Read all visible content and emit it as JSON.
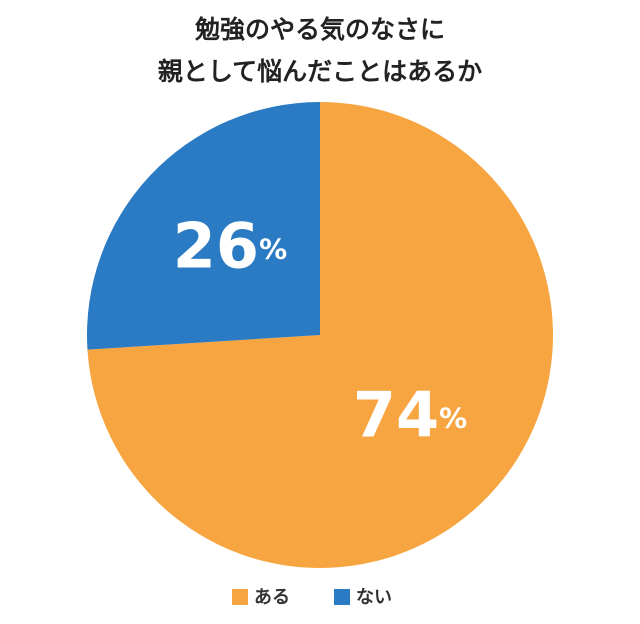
{
  "chart_data": {
    "type": "pie",
    "title": [
      "勉強のやる気のなさに",
      "親として悩んだことはあるか"
    ],
    "categories": [
      "ある",
      "ない"
    ],
    "values": [
      74,
      26
    ],
    "value_labels": [
      "74%",
      "26%"
    ],
    "colors": [
      "#f7a541",
      "#2a7bc4"
    ],
    "legend": "bottom"
  }
}
